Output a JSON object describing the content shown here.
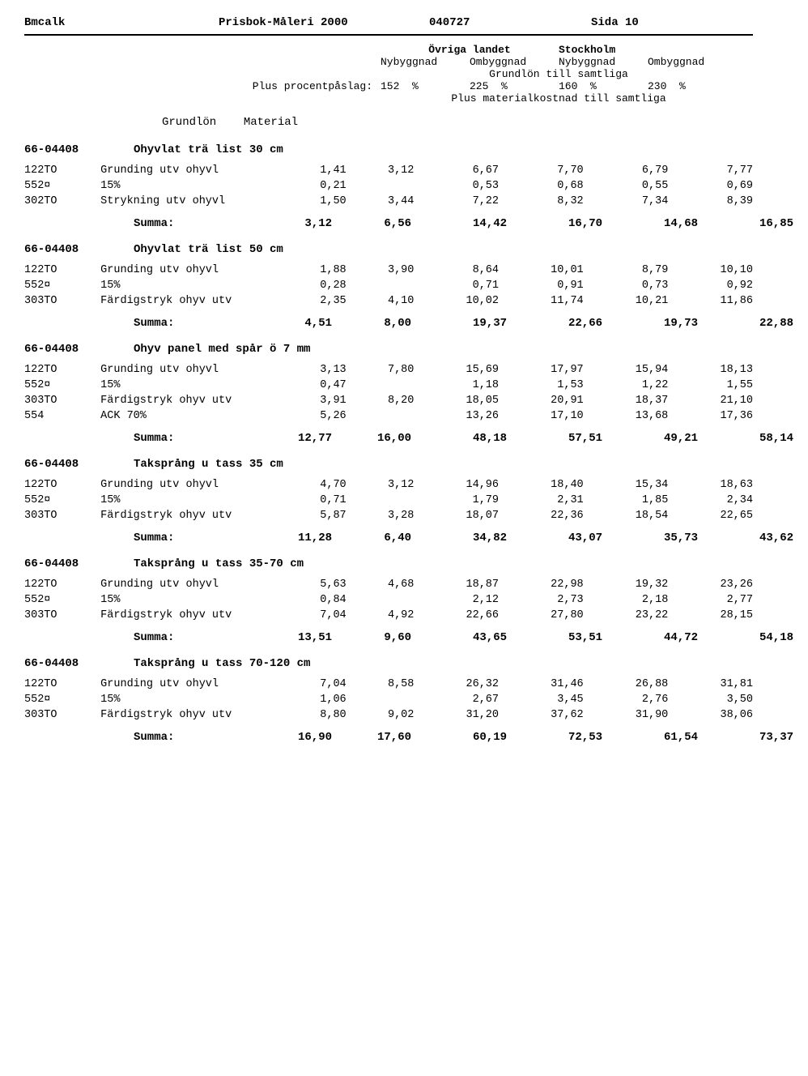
{
  "header": {
    "left": "Bmcalk",
    "center": "Prisbok-Måleri 2000",
    "date": "040727",
    "page_label": "Sida",
    "page_num": "10"
  },
  "subheader": {
    "region1": "Övriga landet",
    "region2": "Stockholm",
    "col_a": "Nybyggnad",
    "col_b": "Ombyggnad",
    "col_c": "Nybyggnad",
    "col_d": "Ombyggnad",
    "line_grundlon": "Grundlön till samtliga",
    "line_plus": "Plus procentpåslag:",
    "p1": "152",
    "p2": "225",
    "p3": "160",
    "p4": "230",
    "pct": "%",
    "line_material": "Plus materialkostnad till samtliga"
  },
  "gm": {
    "g": "Grundlön",
    "m": "Material"
  },
  "sections": [
    {
      "code": "66-04408",
      "title": "Ohyvlat trä list 30 cm",
      "rows": [
        {
          "code": "122TO",
          "desc": "Grunding utv ohyvl",
          "n1": "1,41",
          "n2": "3,12",
          "v1": "6,67",
          "v2": "7,70",
          "v3": "6,79",
          "v4": "7,77"
        },
        {
          "code": "552¤",
          "desc": "15%",
          "n1": "0,21",
          "n2": "",
          "v1": "0,53",
          "v2": "0,68",
          "v3": "0,55",
          "v4": "0,69"
        },
        {
          "code": "302TO",
          "desc": "Strykning utv ohyvl",
          "n1": "1,50",
          "n2": "3,44",
          "v1": "7,22",
          "v2": "8,32",
          "v3": "7,34",
          "v4": "8,39"
        }
      ],
      "summa": {
        "n1": "3,12",
        "n2": "6,56",
        "v1": "14,42",
        "v2": "16,70",
        "v3": "14,68",
        "v4": "16,85"
      }
    },
    {
      "code": "66-04408",
      "title": "Ohyvlat trä list 50 cm",
      "rows": [
        {
          "code": "122TO",
          "desc": "Grunding utv ohyvl",
          "n1": "1,88",
          "n2": "3,90",
          "v1": "8,64",
          "v2": "10,01",
          "v3": "8,79",
          "v4": "10,10"
        },
        {
          "code": "552¤",
          "desc": "15%",
          "n1": "0,28",
          "n2": "",
          "v1": "0,71",
          "v2": "0,91",
          "v3": "0,73",
          "v4": "0,92"
        },
        {
          "code": "303TO",
          "desc": "Färdigstryk ohyv utv",
          "n1": "2,35",
          "n2": "4,10",
          "v1": "10,02",
          "v2": "11,74",
          "v3": "10,21",
          "v4": "11,86"
        }
      ],
      "summa": {
        "n1": "4,51",
        "n2": "8,00",
        "v1": "19,37",
        "v2": "22,66",
        "v3": "19,73",
        "v4": "22,88"
      }
    },
    {
      "code": "66-04408",
      "title": "Ohyv panel med spår ö 7 mm",
      "rows": [
        {
          "code": "122TO",
          "desc": "Grunding utv ohyvl",
          "n1": "3,13",
          "n2": "7,80",
          "v1": "15,69",
          "v2": "17,97",
          "v3": "15,94",
          "v4": "18,13"
        },
        {
          "code": "552¤",
          "desc": "15%",
          "n1": "0,47",
          "n2": "",
          "v1": "1,18",
          "v2": "1,53",
          "v3": "1,22",
          "v4": "1,55"
        },
        {
          "code": "303TO",
          "desc": "Färdigstryk ohyv utv",
          "n1": "3,91",
          "n2": "8,20",
          "v1": "18,05",
          "v2": "20,91",
          "v3": "18,37",
          "v4": "21,10"
        },
        {
          "code": "554",
          "desc": "ACK 70%",
          "n1": "5,26",
          "n2": "",
          "v1": "13,26",
          "v2": "17,10",
          "v3": "13,68",
          "v4": "17,36"
        }
      ],
      "summa": {
        "n1": "12,77",
        "n2": "16,00",
        "v1": "48,18",
        "v2": "57,51",
        "v3": "49,21",
        "v4": "58,14"
      }
    },
    {
      "code": "66-04408",
      "title": "Taksprång u tass 35 cm",
      "rows": [
        {
          "code": "122TO",
          "desc": "Grunding utv ohyvl",
          "n1": "4,70",
          "n2": "3,12",
          "v1": "14,96",
          "v2": "18,40",
          "v3": "15,34",
          "v4": "18,63"
        },
        {
          "code": "552¤",
          "desc": "15%",
          "n1": "0,71",
          "n2": "",
          "v1": "1,79",
          "v2": "2,31",
          "v3": "1,85",
          "v4": "2,34"
        },
        {
          "code": "303TO",
          "desc": "Färdigstryk ohyv utv",
          "n1": "5,87",
          "n2": "3,28",
          "v1": "18,07",
          "v2": "22,36",
          "v3": "18,54",
          "v4": "22,65"
        }
      ],
      "summa": {
        "n1": "11,28",
        "n2": "6,40",
        "v1": "34,82",
        "v2": "43,07",
        "v3": "35,73",
        "v4": "43,62"
      }
    },
    {
      "code": "66-04408",
      "title": "Taksprång u tass 35-70 cm",
      "rows": [
        {
          "code": "122TO",
          "desc": "Grunding utv ohyvl",
          "n1": "5,63",
          "n2": "4,68",
          "v1": "18,87",
          "v2": "22,98",
          "v3": "19,32",
          "v4": "23,26"
        },
        {
          "code": "552¤",
          "desc": "15%",
          "n1": "0,84",
          "n2": "",
          "v1": "2,12",
          "v2": "2,73",
          "v3": "2,18",
          "v4": "2,77"
        },
        {
          "code": "303TO",
          "desc": "Färdigstryk ohyv utv",
          "n1": "7,04",
          "n2": "4,92",
          "v1": "22,66",
          "v2": "27,80",
          "v3": "23,22",
          "v4": "28,15"
        }
      ],
      "summa": {
        "n1": "13,51",
        "n2": "9,60",
        "v1": "43,65",
        "v2": "53,51",
        "v3": "44,72",
        "v4": "54,18"
      }
    },
    {
      "code": "66-04408",
      "title": "Taksprång u tass 70-120 cm",
      "rows": [
        {
          "code": "122TO",
          "desc": "Grunding utv ohyvl",
          "n1": "7,04",
          "n2": "8,58",
          "v1": "26,32",
          "v2": "31,46",
          "v3": "26,88",
          "v4": "31,81"
        },
        {
          "code": "552¤",
          "desc": "15%",
          "n1": "1,06",
          "n2": "",
          "v1": "2,67",
          "v2": "3,45",
          "v3": "2,76",
          "v4": "3,50"
        },
        {
          "code": "303TO",
          "desc": "Färdigstryk ohyv utv",
          "n1": "8,80",
          "n2": "9,02",
          "v1": "31,20",
          "v2": "37,62",
          "v3": "31,90",
          "v4": "38,06"
        }
      ],
      "summa": {
        "n1": "16,90",
        "n2": "17,60",
        "v1": "60,19",
        "v2": "72,53",
        "v3": "61,54",
        "v4": "73,37"
      }
    }
  ],
  "summa_label": "Summa:"
}
